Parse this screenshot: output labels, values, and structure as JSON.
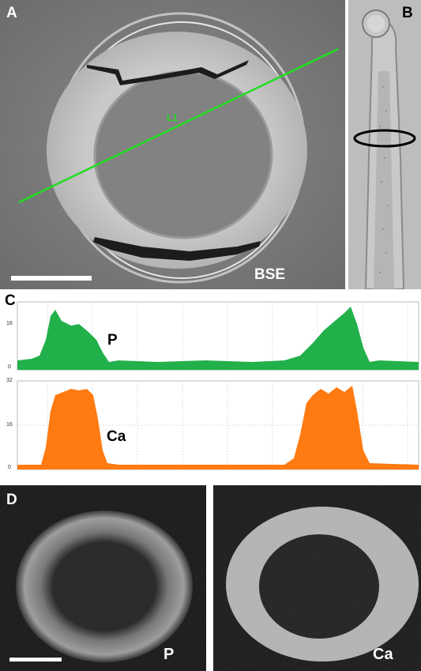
{
  "figure": {
    "panel_a": {
      "label": "A",
      "line_label": "L1",
      "detector_label": "BSE"
    },
    "panel_b": {
      "label": "B"
    },
    "panel_c": {
      "label": "C",
      "p_label": "P",
      "ca_label": "Ca",
      "p_ticks": [
        "16",
        "0"
      ],
      "ca_ticks": [
        "32",
        "16",
        "0"
      ]
    },
    "panel_d": {
      "label": "D",
      "left_label": "P",
      "right_label": "Ca"
    }
  },
  "colors": {
    "line_scan": "#22dd22",
    "p_fill": "#22b04a",
    "ca_fill": "#ff7a10",
    "ellipse": "#000000"
  },
  "icons": [
    "scale-bar",
    "ellipse-marker",
    "line-scan-L1"
  ]
}
